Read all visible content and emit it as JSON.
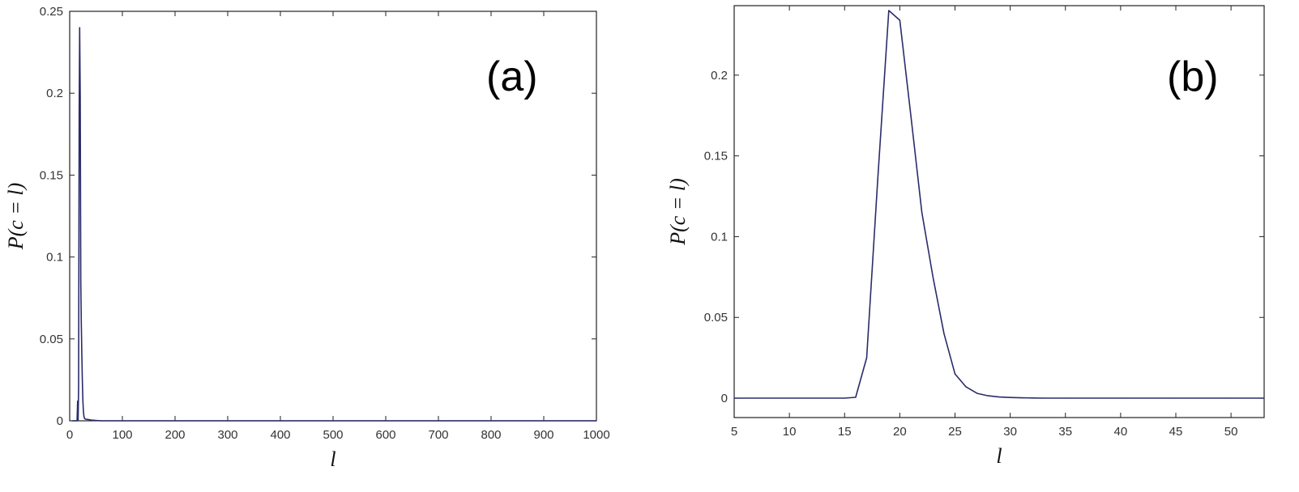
{
  "chart_data": [
    {
      "type": "line",
      "panel_label": "(a)",
      "xlabel": "l",
      "ylabel": "P(c = l)",
      "xlim": [
        0,
        1000
      ],
      "ylim": [
        0,
        0.25
      ],
      "xticks": [
        0,
        100,
        200,
        300,
        400,
        500,
        600,
        700,
        800,
        900,
        1000
      ],
      "xtick_labels": [
        "0",
        "100",
        "200",
        "300",
        "400",
        "500",
        "600",
        "700",
        "800",
        "900",
        "1000"
      ],
      "yticks": [
        0,
        0.05,
        0.1,
        0.15,
        0.2,
        0.25
      ],
      "ytick_labels": [
        "0",
        "0.05",
        "0.1",
        "0.15",
        "0.2",
        "0.25"
      ],
      "grid": false,
      "color": "#2b2b6b",
      "series": [
        {
          "x": [
            5,
            10,
            14,
            15,
            16,
            17,
            18,
            19,
            20,
            21,
            22,
            23,
            24,
            25,
            26,
            27,
            28,
            30,
            35,
            40,
            50,
            60,
            100,
            1000
          ],
          "y": [
            0,
            0,
            0,
            0.012,
            0.0002,
            0.02,
            0.187,
            0.24,
            0.198,
            0.085,
            0.06,
            0.04,
            0.025,
            0.012,
            0.006,
            0.003,
            0.0015,
            0.001,
            0.0008,
            0.0005,
            0.0002,
            0,
            0,
            0
          ]
        }
      ]
    },
    {
      "type": "line",
      "panel_label": "(b)",
      "xlabel": "l",
      "ylabel": "P(c = l)",
      "xlim": [
        5,
        53
      ],
      "ylim": [
        -0.012,
        0.243
      ],
      "xticks": [
        5,
        10,
        15,
        20,
        25,
        30,
        35,
        40,
        45,
        50
      ],
      "xtick_labels": [
        "5",
        "10",
        "15",
        "20",
        "25",
        "30",
        "35",
        "40",
        "45",
        "50"
      ],
      "yticks": [
        0,
        0.05,
        0.1,
        0.15,
        0.2
      ],
      "ytick_labels": [
        "0",
        "0.05",
        "0.1",
        "0.15",
        "0.2"
      ],
      "grid": false,
      "color": "#2b2b6b",
      "series": [
        {
          "x": [
            5,
            15,
            16,
            17,
            18,
            19,
            20,
            21,
            22,
            23,
            24,
            25,
            26,
            27,
            28,
            29,
            30,
            31,
            32,
            33,
            35,
            40,
            45,
            50,
            53
          ],
          "y": [
            0,
            0,
            0.0005,
            0.025,
            0.135,
            0.24,
            0.234,
            0.175,
            0.115,
            0.075,
            0.04,
            0.015,
            0.007,
            0.003,
            0.0015,
            0.0007,
            0.0004,
            0.0002,
            0.0001,
            0,
            0,
            0,
            0,
            0,
            0
          ]
        }
      ]
    }
  ]
}
